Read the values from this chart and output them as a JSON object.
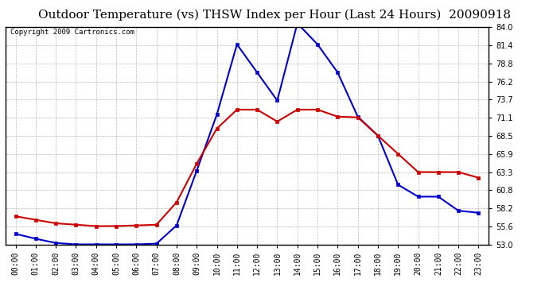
{
  "title": "Outdoor Temperature (vs) THSW Index per Hour (Last 24 Hours)  20090918",
  "copyright": "Copyright 2009 Cartronics.com",
  "hours": [
    "00:00",
    "01:00",
    "02:00",
    "03:00",
    "04:00",
    "05:00",
    "06:00",
    "07:00",
    "08:00",
    "09:00",
    "10:00",
    "11:00",
    "12:00",
    "13:00",
    "14:00",
    "15:00",
    "16:00",
    "17:00",
    "18:00",
    "19:00",
    "20:00",
    "21:00",
    "22:00",
    "23:00"
  ],
  "temp": [
    57.0,
    56.5,
    56.0,
    55.8,
    55.6,
    55.6,
    55.7,
    55.8,
    59.0,
    64.5,
    69.5,
    72.2,
    72.2,
    70.5,
    72.2,
    72.2,
    71.2,
    71.1,
    68.5,
    65.9,
    63.3,
    63.3,
    63.3,
    62.5
  ],
  "thsw": [
    54.5,
    53.8,
    53.2,
    53.0,
    53.0,
    53.0,
    53.0,
    53.1,
    55.7,
    63.5,
    71.5,
    81.5,
    77.5,
    73.5,
    84.5,
    81.5,
    77.5,
    71.2,
    68.5,
    61.5,
    59.8,
    59.8,
    57.8,
    57.5
  ],
  "ylim_min": 53.0,
  "ylim_max": 84.0,
  "yticks": [
    53.0,
    55.6,
    58.2,
    60.8,
    63.3,
    65.9,
    68.5,
    71.1,
    73.7,
    76.2,
    78.8,
    81.4,
    84.0
  ],
  "temp_color": "#cc0000",
  "thsw_color": "#0000cc",
  "bg_color": "#ffffff",
  "plot_bg_color": "#ffffff",
  "grid_color": "#aaaaaa",
  "title_fontsize": 11,
  "tick_fontsize": 7,
  "copyright_fontsize": 6.5
}
